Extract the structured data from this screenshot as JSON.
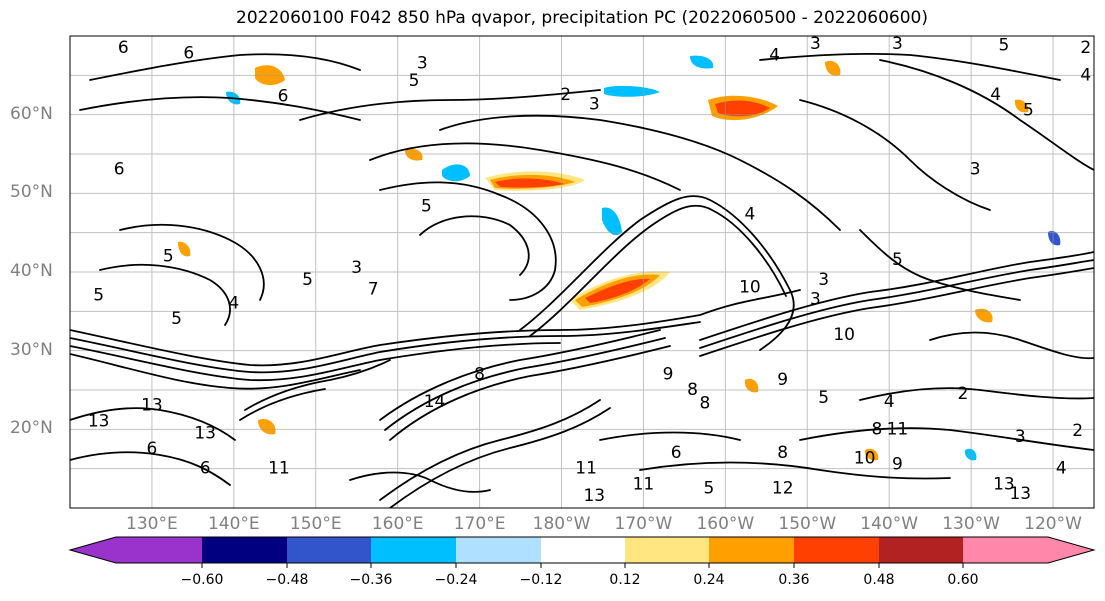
{
  "title": "2022060100 F042 850 hPa qvapor, precipitation PC (2022060500 - 2022060600)",
  "lat_labels": [
    {
      "lat": 60,
      "label": "60°N"
    },
    {
      "lat": 50,
      "label": "50°N"
    },
    {
      "lat": 40,
      "label": "40°N"
    },
    {
      "lat": 30,
      "label": "30°N"
    },
    {
      "lat": 20,
      "label": "20°N"
    }
  ],
  "lon_labels": [
    {
      "lon": 130,
      "label": "130°E"
    },
    {
      "lon": 140,
      "label": "140°E"
    },
    {
      "lon": 150,
      "label": "150°E"
    },
    {
      "lon": 160,
      "label": "160°E"
    },
    {
      "lon": 170,
      "label": "170°E"
    },
    {
      "lon": 180,
      "label": "180°W"
    },
    {
      "lon": 190,
      "label": "170°W"
    },
    {
      "lon": 200,
      "label": "160°W"
    },
    {
      "lon": 210,
      "label": "150°W"
    },
    {
      "lon": 220,
      "label": "140°W"
    },
    {
      "lon": 230,
      "label": "130°W"
    },
    {
      "lon": 240,
      "label": "120°W"
    }
  ],
  "colorbar": {
    "colors": [
      "#9933cc",
      "#000080",
      "#3355cc",
      "#00bfff",
      "#b0e0ff",
      "#ffffff",
      "#ffe680",
      "#ffa000",
      "#ff4000",
      "#b22222",
      "#ff88aa"
    ],
    "ticks": [
      "−0.60",
      "−0.48",
      "−0.36",
      "−0.24",
      "−0.12",
      "0.12",
      "0.24",
      "0.36",
      "0.48",
      "0.60"
    ]
  },
  "contour_labels": [
    {
      "text": "6",
      "lon": 126.5,
      "lat": 68.5
    },
    {
      "text": "6",
      "lon": 134.5,
      "lat": 67.8
    },
    {
      "text": "3",
      "lon": 163,
      "lat": 66.5
    },
    {
      "text": "5",
      "lon": 162,
      "lat": 64.3
    },
    {
      "text": "6",
      "lon": 146,
      "lat": 62.3
    },
    {
      "text": "2",
      "lon": 180.5,
      "lat": 62.5
    },
    {
      "text": "3",
      "lon": 184,
      "lat": 61.3
    },
    {
      "text": "4",
      "lon": 206,
      "lat": 67.5
    },
    {
      "text": "3",
      "lon": 211,
      "lat": 69.0
    },
    {
      "text": "3",
      "lon": 221,
      "lat": 69.0
    },
    {
      "text": "5",
      "lon": 234,
      "lat": 68.8
    },
    {
      "text": "2",
      "lon": 244,
      "lat": 68.5
    },
    {
      "text": "4",
      "lon": 244,
      "lat": 65.0
    },
    {
      "text": "4",
      "lon": 233,
      "lat": 62.5
    },
    {
      "text": "5",
      "lon": 237,
      "lat": 60.5
    },
    {
      "text": "6",
      "lon": 126,
      "lat": 53.0
    },
    {
      "text": "5",
      "lon": 163.5,
      "lat": 48.3
    },
    {
      "text": "4",
      "lon": 203,
      "lat": 47.3
    },
    {
      "text": "3",
      "lon": 230.5,
      "lat": 53.0
    },
    {
      "text": "4",
      "lon": 247,
      "lat": 52.5
    },
    {
      "text": "3",
      "lon": 247,
      "lat": 49.5
    },
    {
      "text": "5",
      "lon": 221,
      "lat": 41.5
    },
    {
      "text": "3",
      "lon": 212,
      "lat": 39.0
    },
    {
      "text": "3",
      "lon": 155,
      "lat": 40.5
    },
    {
      "text": "5",
      "lon": 132,
      "lat": 42.0
    },
    {
      "text": "5",
      "lon": 149,
      "lat": 39.0
    },
    {
      "text": "7",
      "lon": 157,
      "lat": 37.8
    },
    {
      "text": "5",
      "lon": 123.5,
      "lat": 37.0
    },
    {
      "text": "4",
      "lon": 140,
      "lat": 36.0
    },
    {
      "text": "5",
      "lon": 133,
      "lat": 34.0
    },
    {
      "text": "10",
      "lon": 203,
      "lat": 38.0
    },
    {
      "text": "3",
      "lon": 211,
      "lat": 36.5
    },
    {
      "text": "10",
      "lon": 214.5,
      "lat": 32.0
    },
    {
      "text": "8",
      "lon": 170,
      "lat": 27.0
    },
    {
      "text": "14",
      "lon": 164.5,
      "lat": 23.5
    },
    {
      "text": "9",
      "lon": 193,
      "lat": 27.0
    },
    {
      "text": "8",
      "lon": 196,
      "lat": 25.0
    },
    {
      "text": "8",
      "lon": 197.5,
      "lat": 23.3
    },
    {
      "text": "9",
      "lon": 207,
      "lat": 26.3
    },
    {
      "text": "5",
      "lon": 212,
      "lat": 24.0
    },
    {
      "text": "4",
      "lon": 220,
      "lat": 23.5
    },
    {
      "text": "2",
      "lon": 229,
      "lat": 24.5
    },
    {
      "text": "13",
      "lon": 130,
      "lat": 23.0
    },
    {
      "text": "13",
      "lon": 123.5,
      "lat": 21.0
    },
    {
      "text": "13",
      "lon": 136.5,
      "lat": 19.5
    },
    {
      "text": "6",
      "lon": 130,
      "lat": 17.5
    },
    {
      "text": "11",
      "lon": 145.5,
      "lat": 15.0
    },
    {
      "text": "3",
      "lon": 236,
      "lat": 19.0
    },
    {
      "text": "2",
      "lon": 243,
      "lat": 19.8
    },
    {
      "text": "4",
      "lon": 241,
      "lat": 15.0
    },
    {
      "text": "8",
      "lon": 207,
      "lat": 17.0
    },
    {
      "text": "10",
      "lon": 217,
      "lat": 16.3
    },
    {
      "text": "9",
      "lon": 221,
      "lat": 15.5
    },
    {
      "text": "13",
      "lon": 234,
      "lat": 13.0
    },
    {
      "text": "13",
      "lon": 236,
      "lat": 11.8
    },
    {
      "text": "13",
      "lon": 184,
      "lat": 11.5
    },
    {
      "text": "11",
      "lon": 183,
      "lat": 15.0
    },
    {
      "text": "6",
      "lon": 194,
      "lat": 17.0
    },
    {
      "text": "5",
      "lon": 198,
      "lat": 12.5
    },
    {
      "text": "12",
      "lon": 207,
      "lat": 12.5
    },
    {
      "text": "11",
      "lon": 190,
      "lat": 13.0
    },
    {
      "text": "8",
      "lon": 218.5,
      "lat": 20.0
    },
    {
      "text": "11",
      "lon": 221,
      "lat": 20.0
    },
    {
      "text": "6",
      "lon": 136.5,
      "lat": 15.0
    }
  ]
}
